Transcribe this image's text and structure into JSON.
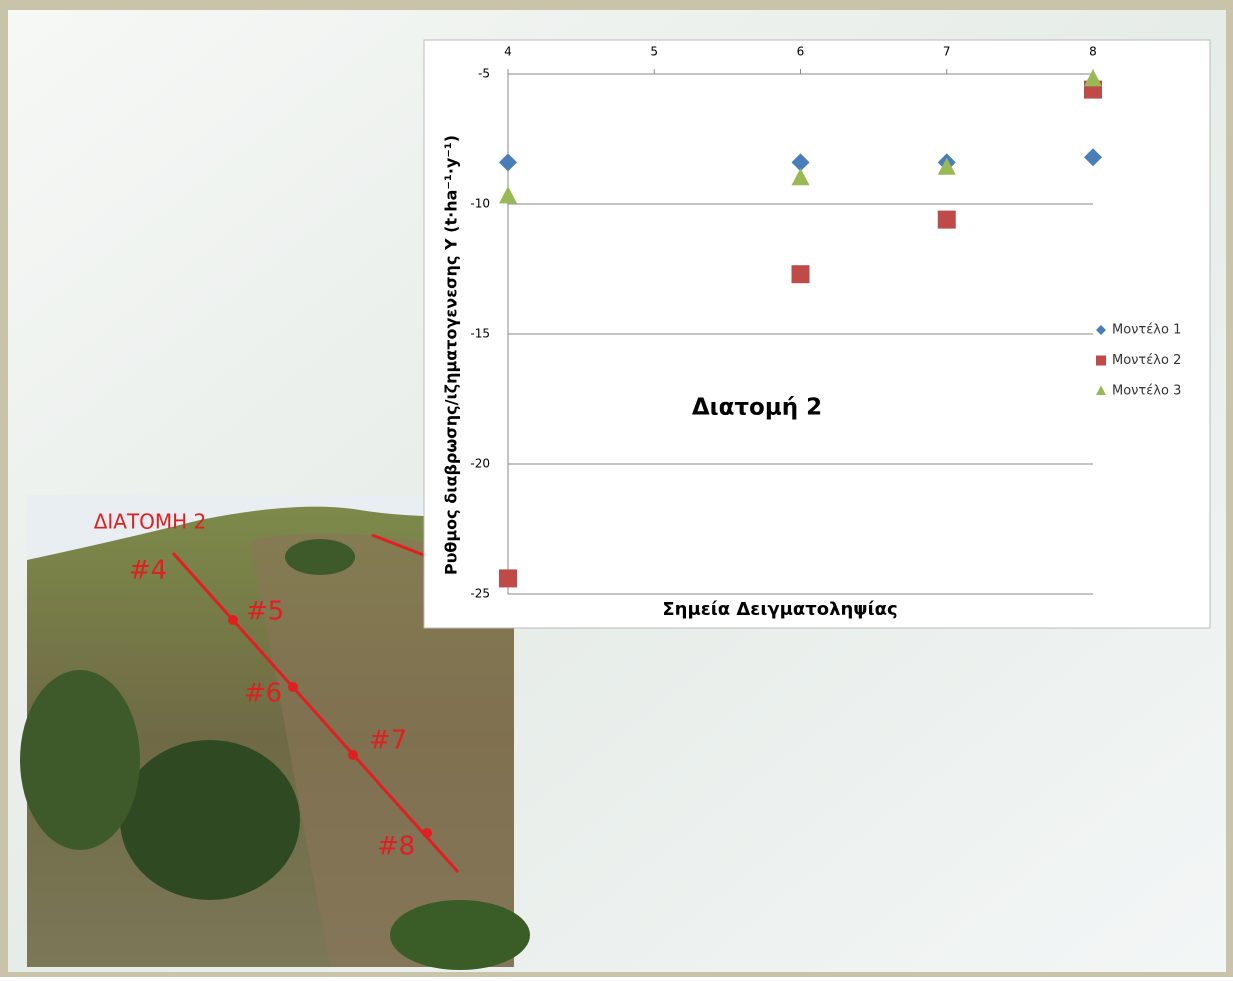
{
  "chart_data": {
    "type": "scatter",
    "annotation": "Διατομή 2",
    "x_label": "Σημεία Δειγματοληψίας",
    "y_label": "Ρυθμος διαβρωσης/ιζηματογενεσης  Y (t·ha⁻¹·y⁻¹)",
    "xlim": [
      4,
      8
    ],
    "xticks": [
      4,
      5,
      6,
      7,
      8
    ],
    "ylim": [
      -25,
      -5
    ],
    "yticks": [
      -5,
      -10,
      -15,
      -20,
      -25
    ],
    "grid": true,
    "legend": "right",
    "series": [
      {
        "name": "Μοντέλο 1",
        "color": "#4a7ebb",
        "marker": "diamond",
        "x": [
          4,
          6,
          7,
          8
        ],
        "values": [
          -8.4,
          -8.4,
          -8.4,
          -8.2
        ]
      },
      {
        "name": "Μοντέλο 2",
        "color": "#be4b48",
        "marker": "square",
        "x": [
          4,
          6,
          7,
          8
        ],
        "values": [
          -24.4,
          -12.7,
          -10.6,
          -5.6
        ]
      },
      {
        "name": "Μοντέλο 3",
        "color": "#98b954",
        "marker": "triangle",
        "x": [
          4,
          6,
          7,
          8
        ],
        "values": [
          -9.7,
          -9.0,
          -8.6,
          -5.2
        ]
      }
    ]
  },
  "photo": {
    "title": "ΔΙΑΤΟΜΗ 2",
    "points": [
      "#4",
      "#5",
      "#6",
      "#7",
      "#8"
    ]
  }
}
